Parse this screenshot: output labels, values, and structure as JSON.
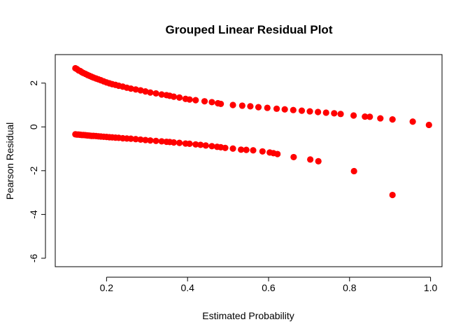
{
  "chart_data": {
    "type": "scatter",
    "title": "Grouped Linear Residual Plot",
    "xlabel": "Estimated Probability",
    "ylabel": "Pearson Residual",
    "xlim": [
      0.0733,
      1.0283
    ],
    "ylim": [
      -6.386,
      3.302
    ],
    "x_ticks": [
      0.2,
      0.4,
      0.6,
      0.8,
      1.0
    ],
    "x_tick_labels": [
      "0.2",
      "0.4",
      "0.6",
      "0.8",
      "1.0"
    ],
    "y_ticks": [
      -6,
      -4,
      -2,
      0,
      2
    ],
    "y_tick_labels": [
      "-6",
      "-4",
      "-2",
      "0",
      "2"
    ],
    "grid": false,
    "legend": "none",
    "marker_color": "#ff0000",
    "series": [
      {
        "points": [
          [
            0.123,
            2.68
          ],
          [
            0.127,
            2.64
          ],
          [
            0.131,
            2.58
          ],
          [
            0.135,
            2.55
          ],
          [
            0.139,
            2.5
          ],
          [
            0.143,
            2.46
          ],
          [
            0.148,
            2.42
          ],
          [
            0.153,
            2.37
          ],
          [
            0.158,
            2.33
          ],
          [
            0.163,
            2.29
          ],
          [
            0.168,
            2.25
          ],
          [
            0.174,
            2.21
          ],
          [
            0.18,
            2.17
          ],
          [
            0.186,
            2.13
          ],
          [
            0.193,
            2.08
          ],
          [
            0.2,
            2.03
          ],
          [
            0.207,
            1.99
          ],
          [
            0.214,
            1.95
          ],
          [
            0.222,
            1.92
          ],
          [
            0.23,
            1.88
          ],
          [
            0.24,
            1.84
          ],
          [
            0.25,
            1.79
          ],
          [
            0.26,
            1.75
          ],
          [
            0.272,
            1.71
          ],
          [
            0.284,
            1.67
          ],
          [
            0.296,
            1.62
          ],
          [
            0.308,
            1.57
          ],
          [
            0.322,
            1.53
          ],
          [
            0.336,
            1.48
          ],
          [
            0.348,
            1.45
          ],
          [
            0.356,
            1.42
          ],
          [
            0.366,
            1.38
          ],
          [
            0.38,
            1.34
          ],
          [
            0.395,
            1.28
          ],
          [
            0.405,
            1.25
          ],
          [
            0.42,
            1.22
          ],
          [
            0.442,
            1.17
          ],
          [
            0.46,
            1.13
          ],
          [
            0.475,
            1.08
          ],
          [
            0.482,
            1.05
          ],
          [
            0.512,
            1.0
          ],
          [
            0.535,
            0.97
          ],
          [
            0.555,
            0.94
          ],
          [
            0.575,
            0.9
          ],
          [
            0.597,
            0.87
          ],
          [
            0.62,
            0.83
          ],
          [
            0.64,
            0.8
          ],
          [
            0.661,
            0.77
          ],
          [
            0.682,
            0.74
          ],
          [
            0.702,
            0.71
          ],
          [
            0.722,
            0.68
          ],
          [
            0.742,
            0.65
          ],
          [
            0.762,
            0.62
          ],
          [
            0.778,
            0.59
          ],
          [
            0.81,
            0.52
          ],
          [
            0.838,
            0.47
          ],
          [
            0.85,
            0.46
          ],
          [
            0.876,
            0.39
          ],
          [
            0.906,
            0.34
          ],
          [
            0.956,
            0.24
          ],
          [
            0.996,
            0.09
          ]
        ]
      },
      {
        "points": [
          [
            0.123,
            -0.34
          ],
          [
            0.127,
            -0.35
          ],
          [
            0.131,
            -0.35
          ],
          [
            0.135,
            -0.36
          ],
          [
            0.139,
            -0.37
          ],
          [
            0.143,
            -0.37
          ],
          [
            0.148,
            -0.38
          ],
          [
            0.153,
            -0.39
          ],
          [
            0.158,
            -0.4
          ],
          [
            0.163,
            -0.41
          ],
          [
            0.168,
            -0.41
          ],
          [
            0.174,
            -0.42
          ],
          [
            0.18,
            -0.43
          ],
          [
            0.186,
            -0.44
          ],
          [
            0.193,
            -0.45
          ],
          [
            0.2,
            -0.46
          ],
          [
            0.207,
            -0.47
          ],
          [
            0.214,
            -0.48
          ],
          [
            0.222,
            -0.49
          ],
          [
            0.23,
            -0.5
          ],
          [
            0.24,
            -0.52
          ],
          [
            0.25,
            -0.53
          ],
          [
            0.26,
            -0.54
          ],
          [
            0.272,
            -0.56
          ],
          [
            0.284,
            -0.58
          ],
          [
            0.296,
            -0.6
          ],
          [
            0.308,
            -0.62
          ],
          [
            0.322,
            -0.64
          ],
          [
            0.336,
            -0.66
          ],
          [
            0.348,
            -0.68
          ],
          [
            0.356,
            -0.69
          ],
          [
            0.366,
            -0.71
          ],
          [
            0.38,
            -0.73
          ],
          [
            0.395,
            -0.76
          ],
          [
            0.405,
            -0.77
          ],
          [
            0.42,
            -0.8
          ],
          [
            0.432,
            -0.82
          ],
          [
            0.445,
            -0.85
          ],
          [
            0.46,
            -0.88
          ],
          [
            0.473,
            -0.91
          ],
          [
            0.482,
            -0.93
          ],
          [
            0.493,
            -0.96
          ],
          [
            0.512,
            -0.99
          ],
          [
            0.532,
            -1.04
          ],
          [
            0.545,
            -1.05
          ],
          [
            0.562,
            -1.07
          ],
          [
            0.585,
            -1.12
          ],
          [
            0.603,
            -1.17
          ],
          [
            0.612,
            -1.2
          ],
          [
            0.622,
            -1.24
          ],
          [
            0.662,
            -1.38
          ],
          [
            0.703,
            -1.49
          ],
          [
            0.723,
            -1.57
          ],
          [
            0.811,
            -2.02
          ],
          [
            0.906,
            -3.11
          ]
        ]
      }
    ]
  }
}
